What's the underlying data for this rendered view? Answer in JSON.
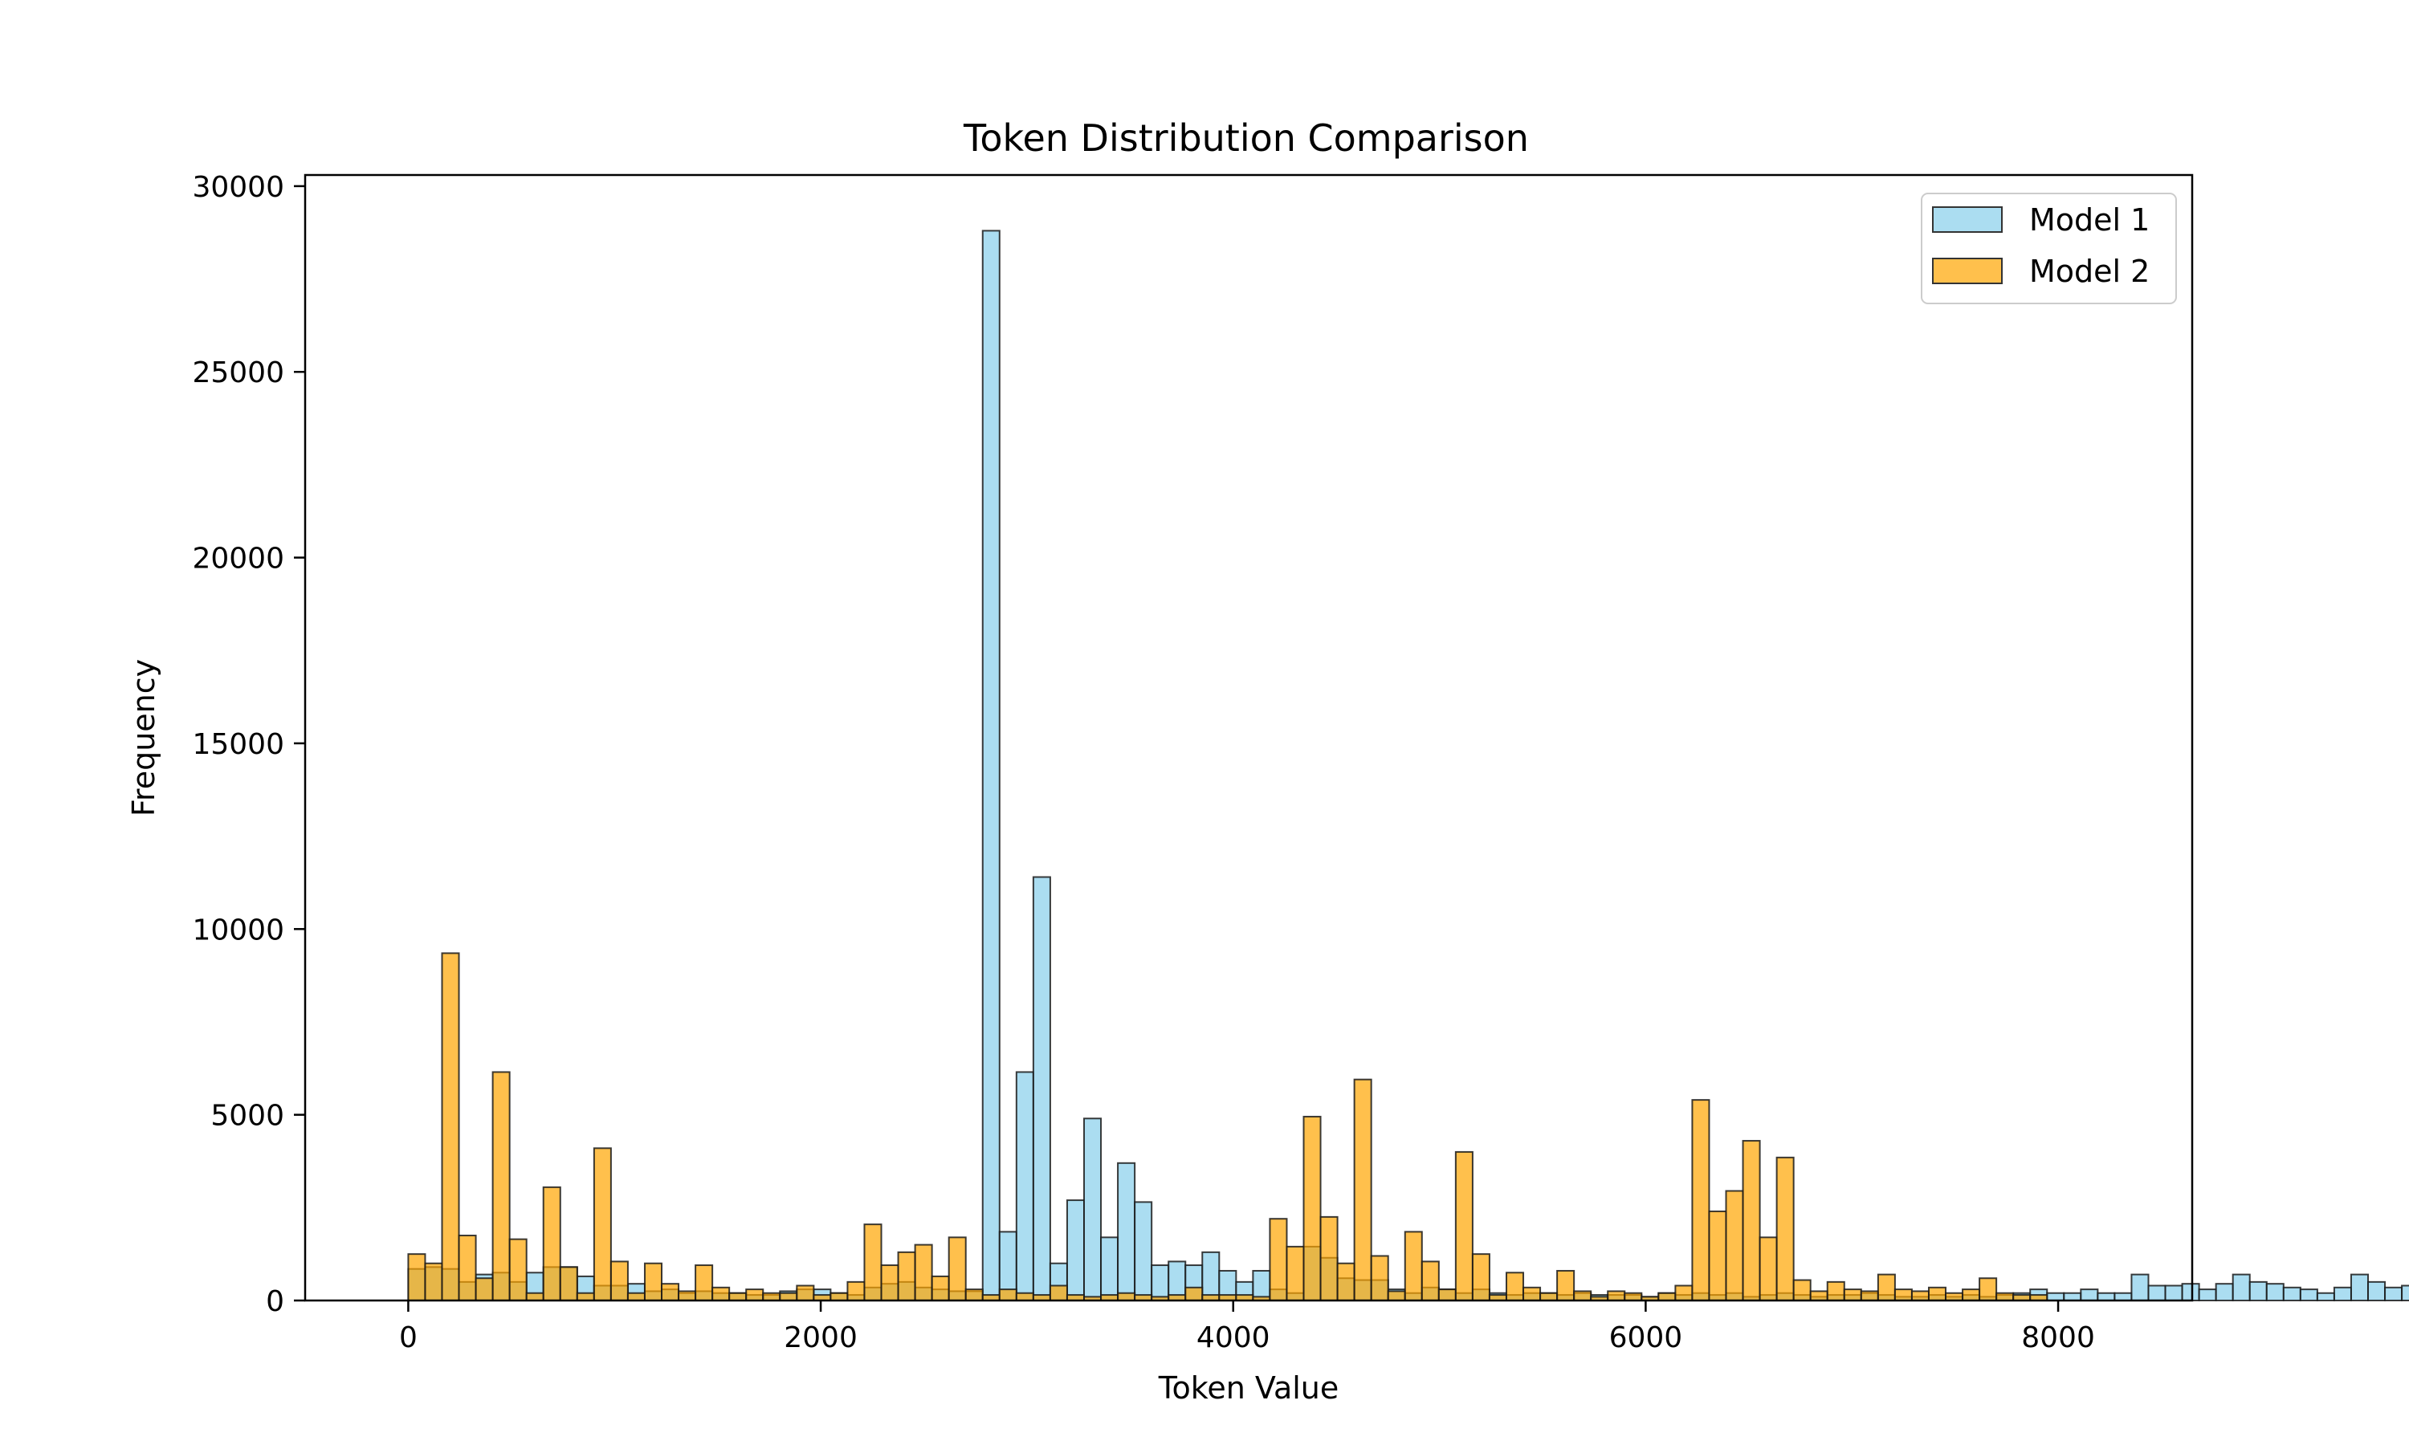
{
  "chart_data": {
    "type": "bar",
    "title": "Token Distribution Comparison",
    "xlabel": "Token Value",
    "ylabel": "Frequency",
    "xlim": [
      -500,
      8650
    ],
    "ylim": [
      0,
      30300
    ],
    "x_ticks": [
      0,
      2000,
      4000,
      6000,
      8000
    ],
    "y_ticks": [
      0,
      5000,
      10000,
      15000,
      20000,
      25000,
      30000
    ],
    "bin_start": 0,
    "bin_width": 81.92,
    "grid": false,
    "legend_position": "top-right",
    "series": [
      {
        "name": "Model 1",
        "color": "#87ceeb",
        "values": [
          850,
          900,
          850,
          500,
          700,
          750,
          500,
          750,
          900,
          900,
          650,
          400,
          400,
          450,
          250,
          300,
          200,
          250,
          200,
          200,
          150,
          150,
          250,
          300,
          300,
          200,
          150,
          350,
          450,
          500,
          350,
          300,
          250,
          250,
          28800,
          1850,
          6150,
          11400,
          1000,
          2700,
          4900,
          1700,
          3700,
          2650,
          950,
          1050,
          950,
          1300,
          800,
          500,
          800,
          300,
          200,
          1450,
          1150,
          600,
          550,
          550,
          300,
          200,
          350,
          300,
          200,
          300,
          200,
          150,
          200,
          200,
          150,
          200,
          150,
          150,
          150,
          100,
          200,
          150,
          200,
          150,
          200,
          100,
          150,
          200,
          150,
          100,
          150,
          150,
          200,
          150,
          100,
          100,
          150,
          100,
          150,
          100,
          150,
          200,
          300,
          200,
          200,
          300,
          200,
          200,
          700,
          400,
          400,
          450,
          300,
          450,
          700,
          500,
          450,
          350,
          300,
          200,
          350,
          700,
          500,
          350,
          400,
          400
        ]
      },
      {
        "name": "Model 2",
        "color": "#ffa500",
        "values": [
          1250,
          1000,
          9350,
          1750,
          600,
          6150,
          1650,
          200,
          3050,
          900,
          200,
          4100,
          1050,
          200,
          1000,
          450,
          250,
          950,
          350,
          200,
          300,
          200,
          200,
          400,
          150,
          200,
          500,
          2050,
          950,
          1300,
          1500,
          650,
          1700,
          300,
          150,
          300,
          200,
          150,
          400,
          150,
          100,
          150,
          200,
          150,
          100,
          150,
          350,
          150,
          150,
          150,
          100,
          2200,
          1450,
          4950,
          2250,
          1000,
          5950,
          1200,
          250,
          1850,
          1050,
          300,
          4000,
          1250,
          150,
          750,
          350,
          200,
          800,
          250,
          100,
          250,
          200,
          100,
          200,
          400,
          5400,
          2400,
          2950,
          4300,
          1700,
          3850,
          550,
          250,
          500,
          300,
          250,
          700,
          300,
          250,
          350,
          200,
          300,
          600,
          200,
          150,
          150
        ]
      }
    ]
  }
}
